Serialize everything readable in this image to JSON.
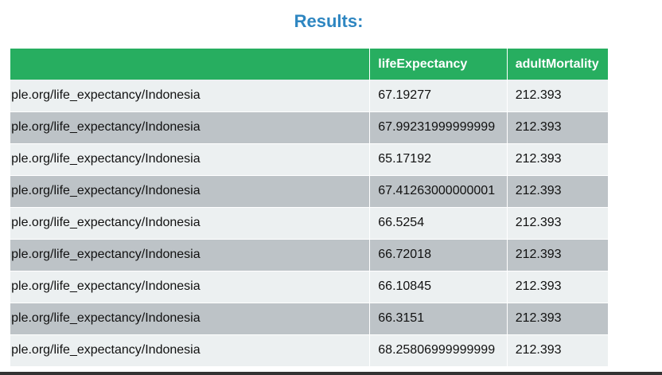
{
  "heading": "Results:",
  "table": {
    "columns": [
      "",
      "lifeExpectancy",
      "adultMortality"
    ],
    "rows": [
      {
        "uri": "example.org/life_expectancy/Indonesia",
        "lifeExpectancy": "67.19277",
        "adultMortality": "212.393"
      },
      {
        "uri": "example.org/life_expectancy/Indonesia",
        "lifeExpectancy": "67.99231999999999",
        "adultMortality": "212.393"
      },
      {
        "uri": "example.org/life_expectancy/Indonesia",
        "lifeExpectancy": "65.17192",
        "adultMortality": "212.393"
      },
      {
        "uri": "example.org/life_expectancy/Indonesia",
        "lifeExpectancy": "67.41263000000001",
        "adultMortality": "212.393"
      },
      {
        "uri": "example.org/life_expectancy/Indonesia",
        "lifeExpectancy": "66.5254",
        "adultMortality": "212.393"
      },
      {
        "uri": "example.org/life_expectancy/Indonesia",
        "lifeExpectancy": "66.72018",
        "adultMortality": "212.393"
      },
      {
        "uri": "example.org/life_expectancy/Indonesia",
        "lifeExpectancy": "66.10845",
        "adultMortality": "212.393"
      },
      {
        "uri": "example.org/life_expectancy/Indonesia",
        "lifeExpectancy": "66.3151",
        "adultMortality": "212.393"
      },
      {
        "uri": "example.org/life_expectancy/Indonesia",
        "lifeExpectancy": "68.25806999999999",
        "adultMortality": "212.393"
      }
    ]
  },
  "colors": {
    "heading": "#2e86c1",
    "header_bg": "#27ae60",
    "row_light": "#ecf0f1",
    "row_dark": "#bdc3c7"
  }
}
